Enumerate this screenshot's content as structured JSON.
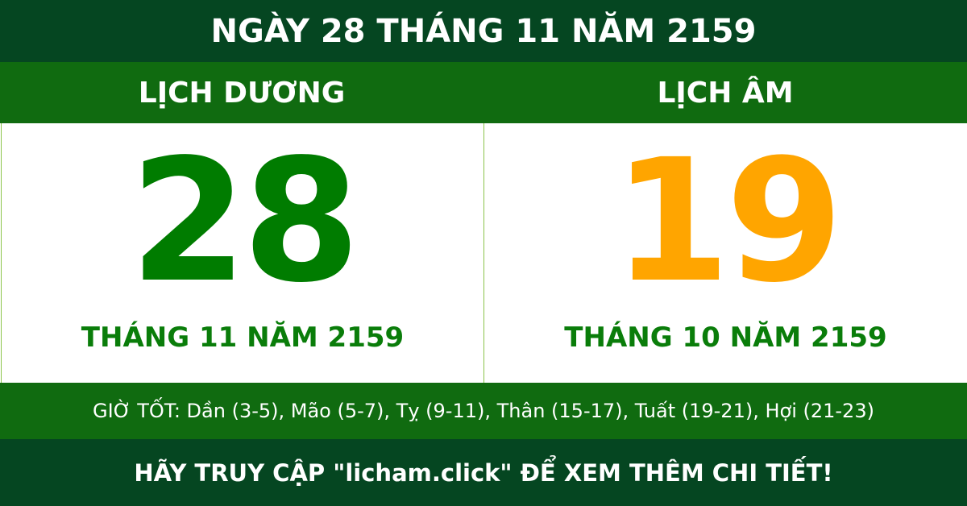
{
  "title": "NGÀY 28 THÁNG 11 NĂM 2159",
  "solar": {
    "label": "LỊCH DƯƠNG",
    "day": "28",
    "month_year": "THÁNG 11 NĂM 2159",
    "color": "#007c00"
  },
  "lunar": {
    "label": "LỊCH ÂM",
    "day": "19",
    "month_year": "THÁNG 10 NĂM 2159",
    "color": "#ffa500"
  },
  "good_hours": "GIỜ TỐT: Dần (3-5), Mão (5-7), Tỵ (9-11), Thân (15-17), Tuất (19-21), Hợi (21-23)",
  "footer": "HÃY TRUY CẬP \"licham.click\" ĐỂ XEM THÊM CHI TIẾT!"
}
